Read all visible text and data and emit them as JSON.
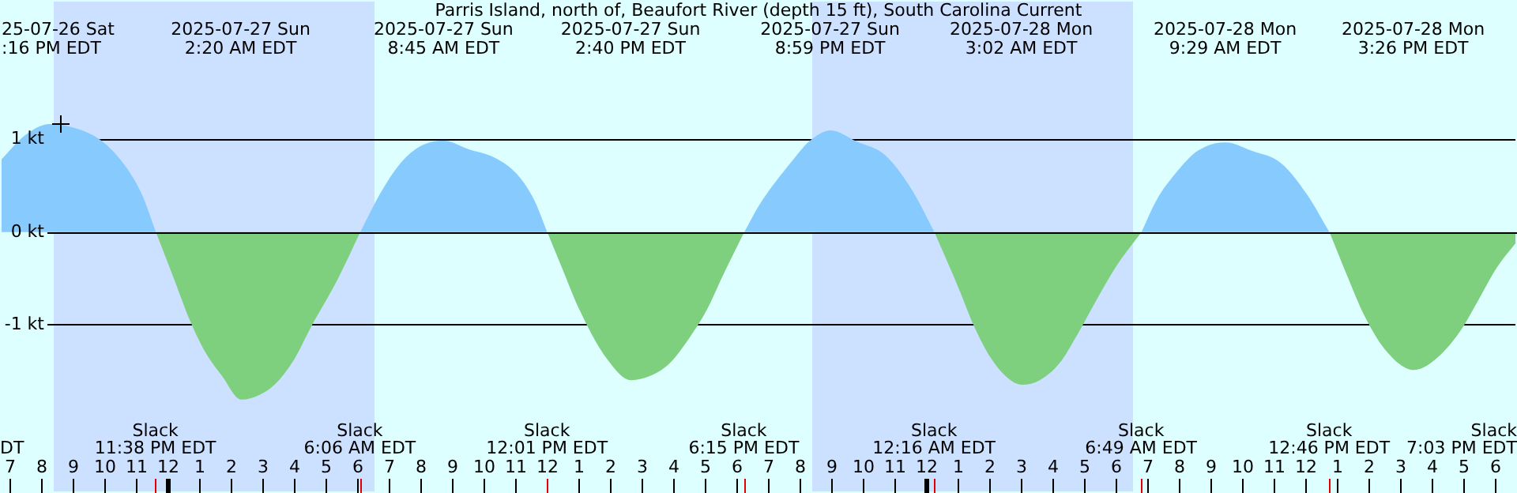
{
  "chart_data": {
    "type": "area",
    "title": "Parris Island, north of, Beaufort River (depth 15 ft), South Carolina Current",
    "xlim": [
      "2025-07-26T18:42",
      "2025-07-28T18:42"
    ],
    "ylim": [
      -2.82,
      2.51
    ],
    "xticks": [
      {
        "value": "2025-07-26T19:00",
        "label": "7"
      },
      {
        "value": "2025-07-26T20:00",
        "label": "8"
      },
      {
        "value": "2025-07-26T21:00",
        "label": "9"
      },
      {
        "value": "2025-07-26T22:00",
        "label": "10"
      },
      {
        "value": "2025-07-26T23:00",
        "label": "11"
      },
      {
        "value": "2025-07-27T00:00",
        "label": "12"
      },
      {
        "value": "2025-07-27T01:00",
        "label": "1"
      },
      {
        "value": "2025-07-27T02:00",
        "label": "2"
      },
      {
        "value": "2025-07-27T03:00",
        "label": "3"
      },
      {
        "value": "2025-07-27T04:00",
        "label": "4"
      },
      {
        "value": "2025-07-27T05:00",
        "label": "5"
      },
      {
        "value": "2025-07-27T06:00",
        "label": "6"
      },
      {
        "value": "2025-07-27T07:00",
        "label": "7"
      },
      {
        "value": "2025-07-27T08:00",
        "label": "8"
      },
      {
        "value": "2025-07-27T09:00",
        "label": "9"
      },
      {
        "value": "2025-07-27T10:00",
        "label": "10"
      },
      {
        "value": "2025-07-27T11:00",
        "label": "11"
      },
      {
        "value": "2025-07-27T12:00",
        "label": "12"
      },
      {
        "value": "2025-07-27T13:00",
        "label": "1"
      },
      {
        "value": "2025-07-27T14:00",
        "label": "2"
      },
      {
        "value": "2025-07-27T15:00",
        "label": "3"
      },
      {
        "value": "2025-07-27T16:00",
        "label": "4"
      },
      {
        "value": "2025-07-27T17:00",
        "label": "5"
      },
      {
        "value": "2025-07-27T18:00",
        "label": "6"
      },
      {
        "value": "2025-07-27T19:00",
        "label": "7"
      },
      {
        "value": "2025-07-27T20:00",
        "label": "8"
      },
      {
        "value": "2025-07-27T21:00",
        "label": "9"
      },
      {
        "value": "2025-07-27T22:00",
        "label": "10"
      },
      {
        "value": "2025-07-27T23:00",
        "label": "11"
      },
      {
        "value": "2025-07-28T00:00",
        "label": "12"
      },
      {
        "value": "2025-07-28T01:00",
        "label": "1"
      },
      {
        "value": "2025-07-28T02:00",
        "label": "2"
      },
      {
        "value": "2025-07-28T03:00",
        "label": "3"
      },
      {
        "value": "2025-07-28T04:00",
        "label": "4"
      },
      {
        "value": "2025-07-28T05:00",
        "label": "5"
      },
      {
        "value": "2025-07-28T06:00",
        "label": "6"
      },
      {
        "value": "2025-07-28T07:00",
        "label": "7"
      },
      {
        "value": "2025-07-28T08:00",
        "label": "8"
      },
      {
        "value": "2025-07-28T09:00",
        "label": "9"
      },
      {
        "value": "2025-07-28T10:00",
        "label": "10"
      },
      {
        "value": "2025-07-28T11:00",
        "label": "11"
      },
      {
        "value": "2025-07-28T12:00",
        "label": "12"
      },
      {
        "value": "2025-07-28T13:00",
        "label": "1"
      },
      {
        "value": "2025-07-28T14:00",
        "label": "2"
      },
      {
        "value": "2025-07-28T15:00",
        "label": "3"
      },
      {
        "value": "2025-07-28T16:00",
        "label": "4"
      },
      {
        "value": "2025-07-28T17:00",
        "label": "5"
      },
      {
        "value": "2025-07-28T18:00",
        "label": "6"
      }
    ],
    "yticks": [
      {
        "value": 1,
        "label": "1 kt"
      },
      {
        "value": 0,
        "label": "0 kt"
      },
      {
        "value": -1,
        "label": "-1 kt"
      }
    ],
    "grid": "y",
    "legend": false,
    "bands": [
      {
        "axis": "x",
        "from": "2025-07-26T20:24",
        "to": "2025-07-27T06:33",
        "color": "#cce0ff"
      },
      {
        "axis": "x",
        "from": "2025-07-27T20:24",
        "to": "2025-07-28T06:33",
        "color": "#cce0ff"
      }
    ],
    "series": [
      {
        "color": "#87cbfe",
        "x": [
          "2025-07-26T18:42",
          "2025-07-26T19:30",
          "2025-07-26T20:16",
          "2025-07-26T21:18",
          "2025-07-26T22:03",
          "2025-07-26T22:43",
          "2025-07-26T23:12",
          "2025-07-26T23:38",
          "2025-07-27T03:00",
          "2025-07-27T06:06",
          "2025-07-27T06:42",
          "2025-07-27T07:23",
          "2025-07-27T08:00",
          "2025-07-27T08:45",
          "2025-07-27T09:30",
          "2025-07-27T10:23",
          "2025-07-27T11:03",
          "2025-07-27T11:36",
          "2025-07-27T12:01",
          "2025-07-27T15:00",
          "2025-07-27T18:15",
          "2025-07-27T18:43",
          "2025-07-27T19:43",
          "2025-07-27T20:18",
          "2025-07-27T20:59",
          "2025-07-27T21:48",
          "2025-07-27T22:43",
          "2025-07-27T23:33",
          "2025-07-28T00:16",
          "2025-07-28T03:00",
          "2025-07-28T06:49",
          "2025-07-28T07:18",
          "2025-07-28T07:53",
          "2025-07-28T08:36",
          "2025-07-28T09:29",
          "2025-07-28T10:18",
          "2025-07-28T11:13",
          "2025-07-28T12:03",
          "2025-07-28T12:46"
        ],
        "values": [
          0.77,
          1.05,
          1.17,
          1.1,
          0.95,
          0.69,
          0.4,
          0,
          null,
          0,
          0.4,
          0.75,
          0.93,
          0.99,
          0.9,
          0.8,
          0.63,
          0.35,
          0,
          null,
          0,
          0.29,
          0.75,
          0.98,
          1.1,
          0.98,
          0.83,
          0.46,
          0,
          null,
          0,
          0.35,
          0.63,
          0.88,
          0.97,
          0.88,
          0.75,
          0.41,
          0
        ]
      },
      {
        "color": "#7ecf7e",
        "x": [
          "2025-07-26T23:38",
          "2025-07-27T00:12",
          "2025-07-27T00:43",
          "2025-07-27T01:12",
          "2025-07-27T01:43",
          "2025-07-27T02:20",
          "2025-07-27T02:54",
          "2025-07-27T03:23",
          "2025-07-27T04:00",
          "2025-07-27T04:33",
          "2025-07-27T05:23",
          "2025-07-27T06:06",
          "2025-07-27T09:00",
          "2025-07-27T12:01",
          "2025-07-27T12:30",
          "2025-07-27T13:03",
          "2025-07-27T13:53",
          "2025-07-27T14:40",
          "2025-07-27T15:18",
          "2025-07-27T15:53",
          "2025-07-27T16:30",
          "2025-07-27T17:03",
          "2025-07-27T17:36",
          "2025-07-27T18:15",
          "2025-07-27T21:00",
          "2025-07-28T00:16",
          "2025-07-28T01:03",
          "2025-07-28T01:30",
          "2025-07-28T02:03",
          "2025-07-28T02:36",
          "2025-07-28T03:02",
          "2025-07-28T03:36",
          "2025-07-28T04:13",
          "2025-07-28T04:48",
          "2025-07-28T05:23",
          "2025-07-28T06:00",
          "2025-07-28T06:49",
          "2025-07-28T09:00",
          "2025-07-28T12:46",
          "2025-07-28T13:18",
          "2025-07-28T13:53",
          "2025-07-28T14:36",
          "2025-07-28T15:26",
          "2025-07-28T16:06",
          "2025-07-28T16:53",
          "2025-07-28T17:30",
          "2025-07-28T18:03",
          "2025-07-28T18:42"
        ],
        "values": [
          0,
          -0.5,
          -0.96,
          -1.3,
          -1.55,
          -1.81,
          -1.76,
          -1.65,
          -1.38,
          -1.02,
          -0.51,
          0,
          null,
          0,
          -0.4,
          -0.85,
          -1.36,
          -1.6,
          -1.55,
          -1.42,
          -1.15,
          -0.85,
          -0.45,
          0,
          null,
          0,
          -0.62,
          -1.0,
          -1.36,
          -1.58,
          -1.65,
          -1.6,
          -1.42,
          -1.1,
          -0.74,
          -0.38,
          0,
          null,
          0,
          -0.45,
          -0.91,
          -1.3,
          -1.49,
          -1.38,
          -1.08,
          -0.72,
          -0.39,
          -0.1
        ]
      }
    ],
    "annotations": [
      "25-07-26 Sat\n:16 PM EDT",
      "2025-07-27 Sun\n2:20 AM EDT",
      "2025-07-27 Sun\n8:45 AM EDT",
      "2025-07-27 Sun\n2:40 PM EDT",
      "2025-07-27 Sun\n8:59 PM EDT",
      "2025-07-28 Mon\n3:02 AM EDT",
      "2025-07-28 Mon\n9:29 AM EDT",
      "2025-07-28 Mon\n3:26 PM EDT",
      "Slack\n11:38 PM EDT",
      "Slack\n6:06 AM EDT",
      "Slack\n12:01 PM EDT",
      "Slack\n6:15 PM EDT",
      "Slack\n12:16 AM EDT",
      "Slack\n6:49 AM EDT",
      "Slack\n12:46 PM EDT",
      "DT",
      "Slack\n7:03 PM EDT"
    ]
  }
}
